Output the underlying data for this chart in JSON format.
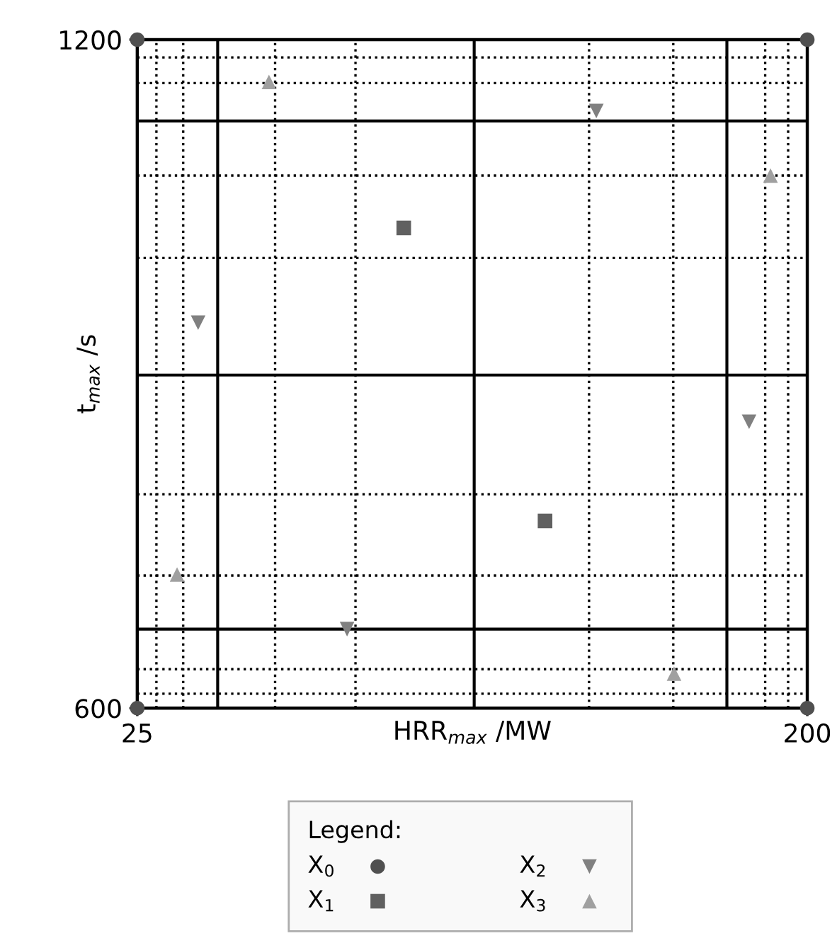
{
  "chart_data": {
    "type": "scatter",
    "xlabel": "HRR$_{max}$ /MW",
    "ylabel": "t$_{max}$ /s",
    "xlim": [
      25,
      200
    ],
    "ylim": [
      600,
      1200
    ],
    "xticks": [
      25,
      200
    ],
    "yticks": [
      600,
      1200
    ],
    "legend": "bottom",
    "legend_title": "Legend:",
    "series": [
      {
        "name": "X$_{0}$",
        "color": "#505050",
        "marker": "circle",
        "x": [
          25,
          25,
          200,
          200
        ],
        "values": [
          600,
          1200,
          600,
          1200
        ]
      },
      {
        "name": "X$_{1}$",
        "color": "#606060",
        "marker": "square",
        "x": [
          94.6,
          131.5
        ],
        "values": [
          1031,
          768
        ]
      },
      {
        "name": "X$_{2}$",
        "color": "#808080",
        "marker": "triangle_down",
        "x": [
          40.9,
          79.8,
          144.9,
          184.8
        ],
        "values": [
          946,
          671,
          1136,
          857
        ]
      },
      {
        "name": "X$_{3}$",
        "color": "#a0a0a0",
        "marker": "triangle",
        "x": [
          35.4,
          59.4,
          165.2,
          190.4
        ],
        "values": [
          720,
          1162,
          631,
          1078
        ]
      }
    ],
    "ref_lines": [
      {
        "axis": "x",
        "value": 46,
        "line_style": "solid"
      },
      {
        "axis": "x",
        "value": 113,
        "line_style": "solid"
      },
      {
        "axis": "x",
        "value": 179,
        "line_style": "solid"
      },
      {
        "axis": "y",
        "value": 1127,
        "line_style": "solid"
      },
      {
        "axis": "y",
        "value": 899,
        "line_style": "solid"
      },
      {
        "axis": "y",
        "value": 671,
        "line_style": "solid"
      },
      {
        "axis": "x",
        "value": 30,
        "line_style": "dotted"
      },
      {
        "axis": "x",
        "value": 37,
        "line_style": "dotted"
      },
      {
        "axis": "x",
        "value": 61,
        "line_style": "dotted"
      },
      {
        "axis": "x",
        "value": 82,
        "line_style": "dotted"
      },
      {
        "axis": "x",
        "value": 143,
        "line_style": "dotted"
      },
      {
        "axis": "x",
        "value": 165,
        "line_style": "dotted"
      },
      {
        "axis": "x",
        "value": 189,
        "line_style": "dotted"
      },
      {
        "axis": "x",
        "value": 195,
        "line_style": "dotted"
      },
      {
        "axis": "y",
        "value": 1184,
        "line_style": "dotted"
      },
      {
        "axis": "y",
        "value": 1161,
        "line_style": "dotted"
      },
      {
        "axis": "y",
        "value": 1078,
        "line_style": "dotted"
      },
      {
        "axis": "y",
        "value": 1004,
        "line_style": "dotted"
      },
      {
        "axis": "y",
        "value": 792,
        "line_style": "dotted"
      },
      {
        "axis": "y",
        "value": 719,
        "line_style": "dotted"
      },
      {
        "axis": "y",
        "value": 635,
        "line_style": "dotted"
      },
      {
        "axis": "y",
        "value": 613,
        "line_style": "dotted"
      }
    ]
  }
}
